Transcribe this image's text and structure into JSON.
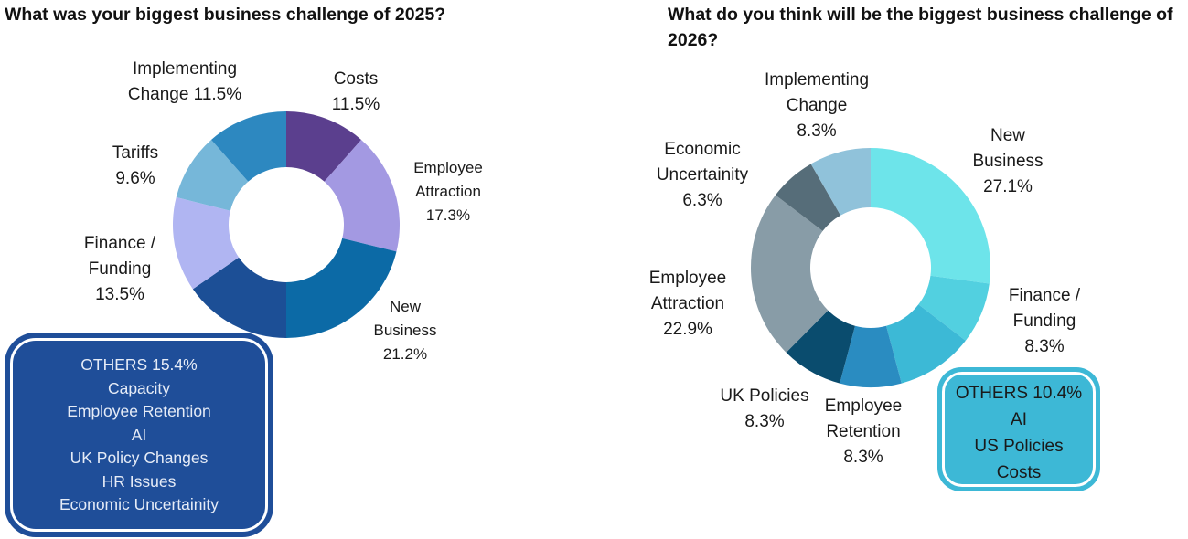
{
  "chart_data": [
    {
      "type": "pie",
      "title": "What was your biggest business challenge of 2025?",
      "categories": [
        "Costs",
        "Employee Attraction",
        "New Business",
        "Others",
        "Finance / Funding",
        "Tariffs",
        "Implementing Change"
      ],
      "values": [
        11.5,
        17.3,
        21.2,
        15.4,
        13.5,
        9.6,
        11.5
      ],
      "labels": [
        {
          "lines": [
            "Costs",
            "11.5%"
          ]
        },
        {
          "lines": [
            "Employee",
            "Attraction",
            "17.3%"
          ]
        },
        {
          "lines": [
            "New",
            "Business",
            "21.2%"
          ]
        },
        null,
        {
          "lines": [
            "Finance /",
            "Funding",
            "13.5%"
          ]
        },
        {
          "lines": [
            "Tariffs",
            "9.6%"
          ]
        },
        {
          "lines": [
            "Implementing",
            "Change 11.5%"
          ]
        }
      ],
      "colors": [
        "#5b3f8e",
        "#a399e2",
        "#0c6aa6",
        "#1c4f96",
        "#b0b5f2",
        "#76b7d9",
        "#2d88c0"
      ],
      "others_box": {
        "lines": [
          "OTHERS 15.4%",
          "Capacity",
          "Employee Retention",
          "AI",
          "UK Policy Changes",
          "HR Issues",
          "Economic Uncertainity"
        ],
        "color": "#1f4e99"
      }
    },
    {
      "type": "pie",
      "title": "What do you think will be the biggest business challenge of 2026?",
      "categories": [
        "New Business",
        "Finance / Funding",
        "Others",
        "Employee Retention",
        "UK Policies",
        "Employee Attraction",
        "Economic Uncertainity",
        "Implementing Change"
      ],
      "values": [
        27.1,
        8.3,
        10.4,
        8.3,
        8.3,
        22.9,
        6.3,
        8.3
      ],
      "labels": [
        {
          "lines": [
            "New",
            "Business",
            "27.1%"
          ]
        },
        {
          "lines": [
            "Finance /",
            "Funding",
            "8.3%"
          ]
        },
        null,
        {
          "lines": [
            "Employee",
            "Retention",
            "8.3%"
          ]
        },
        {
          "lines": [
            "UK Policies",
            "8.3%"
          ]
        },
        {
          "lines": [
            "Employee",
            "Attraction",
            "22.9%"
          ]
        },
        {
          "lines": [
            "Economic",
            "Uncertainity",
            "6.3%"
          ]
        },
        {
          "lines": [
            "Implementing",
            "Change",
            "8.3%"
          ]
        }
      ],
      "colors": [
        "#6de4ea",
        "#52d0e0",
        "#3cb9d6",
        "#2a8cc1",
        "#0a4c6e",
        "#889ca7",
        "#566d79",
        "#90c2da"
      ],
      "others_box": {
        "lines": [
          "OTHERS 10.4%",
          "AI",
          "US Policies",
          "Costs"
        ],
        "color": "#3db8d6"
      }
    }
  ]
}
